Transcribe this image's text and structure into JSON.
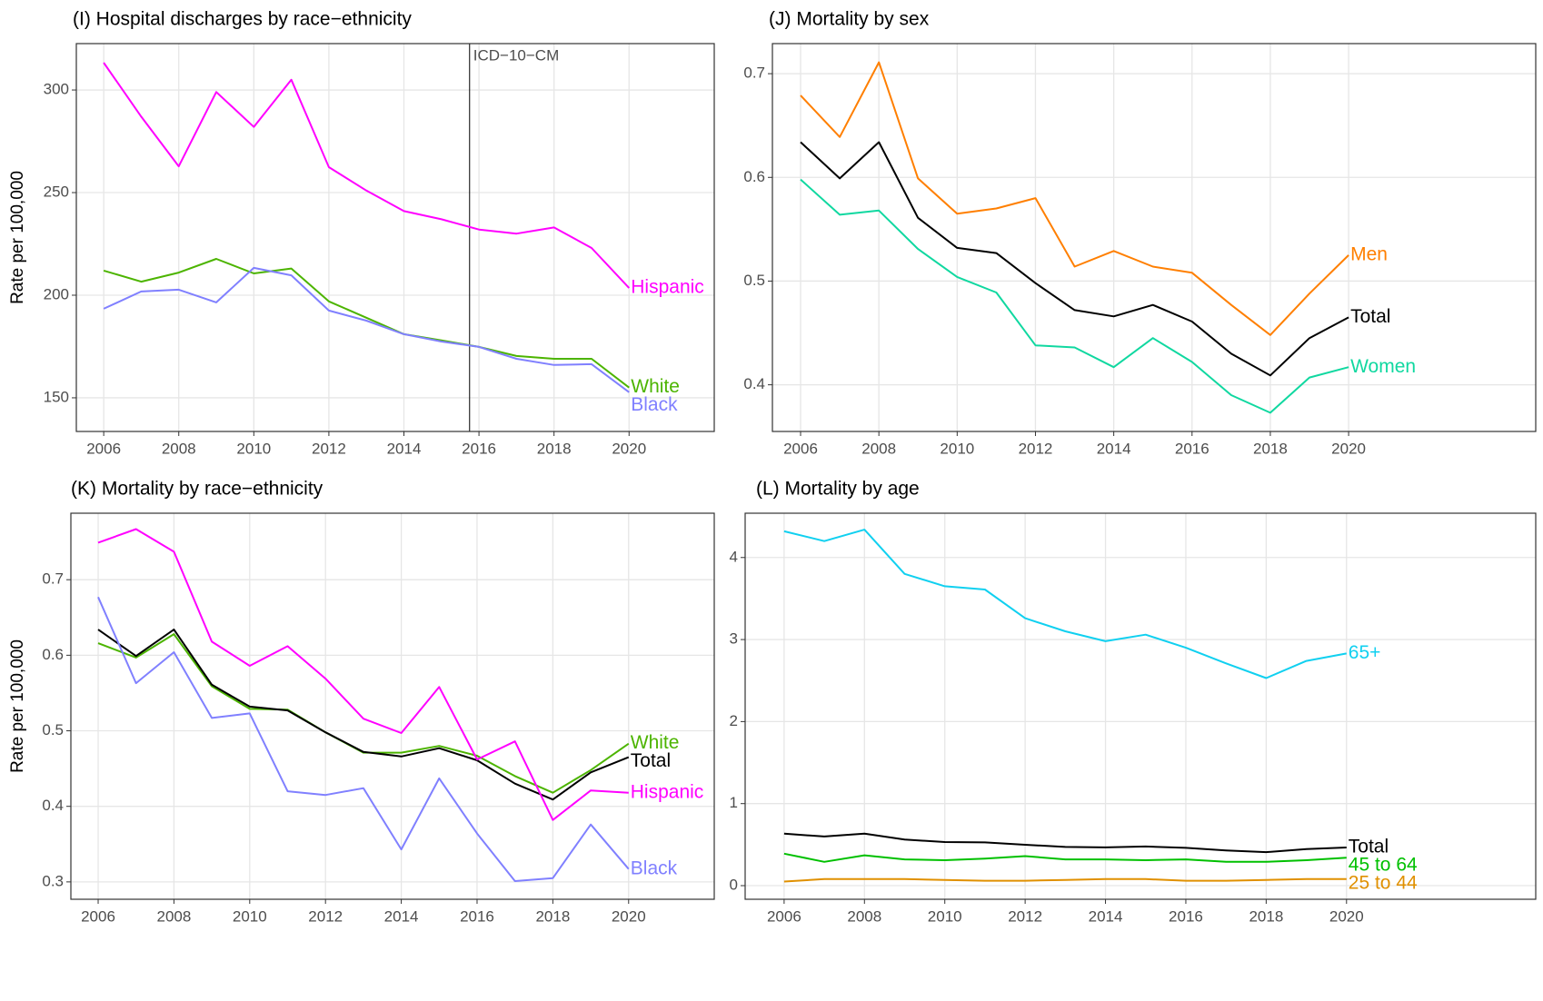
{
  "chart_data": [
    {
      "type": "line",
      "title": "(I) Hospital discharges by race−ethnicity",
      "y_label": "Rate per 100,000",
      "x": [
        2006,
        2007,
        2008,
        2009,
        2010,
        2011,
        2012,
        2013,
        2014,
        2015,
        2016,
        2017,
        2018,
        2019,
        2020
      ],
      "xlim": [
        2005.27,
        2022.27
      ],
      "xticks": [
        2006,
        2008,
        2010,
        2012,
        2014,
        2016,
        2018,
        2020
      ],
      "ylim": [
        133.6,
        322.6
      ],
      "yticks": [
        150,
        200,
        250,
        300
      ],
      "grid": true,
      "vline": {
        "value": 2015.75,
        "label": "ICD−10−CM"
      },
      "series": [
        {
          "name": "Hispanic",
          "color": "#ff00ff",
          "values": [
            313.3,
            287,
            262.8,
            299,
            282,
            305,
            262.4,
            251,
            241,
            237,
            232,
            230,
            233,
            223,
            203.5
          ]
        },
        {
          "name": "White",
          "color": "#4cb400",
          "values": [
            212,
            206.6,
            211,
            217.7,
            210.6,
            213,
            197,
            189,
            181,
            178,
            174.8,
            170.4,
            169,
            169,
            155
          ]
        },
        {
          "name": "Black",
          "color": "#8080ff",
          "values": [
            193.4,
            201.8,
            202.7,
            196.5,
            213.3,
            209.7,
            192.5,
            187.6,
            181,
            177.4,
            174.8,
            169,
            166,
            166.4,
            152.7
          ]
        }
      ]
    },
    {
      "type": "line",
      "title": "(J) Mortality by sex",
      "x": [
        2006,
        2007,
        2008,
        2009,
        2010,
        2011,
        2012,
        2013,
        2014,
        2015,
        2016,
        2017,
        2018,
        2019,
        2020
      ],
      "xlim": [
        2005.28,
        2024.78
      ],
      "xticks": [
        2006,
        2008,
        2010,
        2012,
        2014,
        2016,
        2018,
        2020
      ],
      "ylim": [
        0.355,
        0.729
      ],
      "yticks": [
        0.4,
        0.5,
        0.6,
        0.7
      ],
      "grid": true,
      "series": [
        {
          "name": "Men",
          "color": "#ff7f00",
          "values": [
            0.679,
            0.639,
            0.711,
            0.599,
            0.565,
            0.57,
            0.58,
            0.514,
            0.529,
            0.514,
            0.508,
            0.477,
            0.448,
            0.488,
            0.525
          ]
        },
        {
          "name": "Total",
          "color": "#000000",
          "values": [
            0.634,
            0.599,
            0.634,
            0.561,
            0.532,
            0.527,
            0.498,
            0.472,
            0.466,
            0.477,
            0.461,
            0.43,
            0.409,
            0.445,
            0.465
          ]
        },
        {
          "name": "Women",
          "color": "#10d8a0",
          "values": [
            0.598,
            0.564,
            0.568,
            0.531,
            0.504,
            0.489,
            0.438,
            0.436,
            0.417,
            0.445,
            0.422,
            0.39,
            0.373,
            0.407,
            0.417
          ]
        }
      ]
    },
    {
      "type": "line",
      "title": "(K) Mortality by race−ethnicity",
      "y_label": "Rate per 100,000",
      "x": [
        2006,
        2007,
        2008,
        2009,
        2010,
        2011,
        2012,
        2013,
        2014,
        2015,
        2016,
        2017,
        2018,
        2019,
        2020
      ],
      "xlim": [
        2005.28,
        2022.26
      ],
      "xticks": [
        2006,
        2008,
        2010,
        2012,
        2014,
        2016,
        2018,
        2020
      ],
      "ylim": [
        0.277,
        0.788
      ],
      "yticks": [
        0.3,
        0.4,
        0.5,
        0.6,
        0.7
      ],
      "grid": true,
      "series": [
        {
          "name": "White",
          "color": "#4cb400",
          "values": [
            0.616,
            0.597,
            0.628,
            0.559,
            0.529,
            0.528,
            0.498,
            0.471,
            0.471,
            0.48,
            0.467,
            0.44,
            0.418,
            0.448,
            0.483
          ]
        },
        {
          "name": "Total",
          "color": "#000000",
          "values": [
            0.634,
            0.599,
            0.634,
            0.561,
            0.532,
            0.527,
            0.498,
            0.472,
            0.466,
            0.477,
            0.461,
            0.43,
            0.409,
            0.445,
            0.465
          ]
        },
        {
          "name": "Hispanic",
          "color": "#ff00ff",
          "values": [
            0.749,
            0.767,
            0.737,
            0.618,
            0.586,
            0.612,
            0.569,
            0.516,
            0.497,
            0.558,
            0.462,
            0.486,
            0.382,
            0.421,
            0.418
          ]
        },
        {
          "name": "Black",
          "color": "#8080ff",
          "values": [
            0.677,
            0.563,
            0.604,
            0.517,
            0.523,
            0.42,
            0.415,
            0.424,
            0.343,
            0.437,
            0.364,
            0.301,
            0.305,
            0.376,
            0.317
          ]
        }
      ]
    },
    {
      "type": "line",
      "title": "(L) Mortality by age",
      "x": [
        2006,
        2007,
        2008,
        2009,
        2010,
        2011,
        2012,
        2013,
        2014,
        2015,
        2016,
        2017,
        2018,
        2019,
        2020
      ],
      "xlim": [
        2005.03,
        2024.71
      ],
      "xticks": [
        2006,
        2008,
        2010,
        2012,
        2014,
        2016,
        2018,
        2020
      ],
      "ylim": [
        -0.166,
        4.54
      ],
      "yticks": [
        0,
        1,
        2,
        3,
        4
      ],
      "grid": true,
      "series": [
        {
          "name": "65+",
          "color": "#10d0f0",
          "values": [
            4.32,
            4.2,
            4.34,
            3.8,
            3.65,
            3.61,
            3.26,
            3.1,
            2.98,
            3.06,
            2.9,
            2.71,
            2.53,
            2.74,
            2.83
          ]
        },
        {
          "name": "Total",
          "color": "#000000",
          "values": [
            0.634,
            0.599,
            0.634,
            0.561,
            0.532,
            0.527,
            0.498,
            0.472,
            0.466,
            0.477,
            0.461,
            0.43,
            0.409,
            0.445,
            0.465
          ]
        },
        {
          "name": "45 to 64",
          "color": "#00c000",
          "values": [
            0.39,
            0.29,
            0.37,
            0.32,
            0.31,
            0.33,
            0.36,
            0.32,
            0.32,
            0.31,
            0.32,
            0.29,
            0.29,
            0.31,
            0.34
          ]
        },
        {
          "name": "25 to 44",
          "color": "#e09000",
          "values": [
            0.05,
            0.08,
            0.08,
            0.08,
            0.07,
            0.06,
            0.06,
            0.07,
            0.08,
            0.08,
            0.06,
            0.06,
            0.07,
            0.08,
            0.08
          ]
        }
      ]
    }
  ]
}
